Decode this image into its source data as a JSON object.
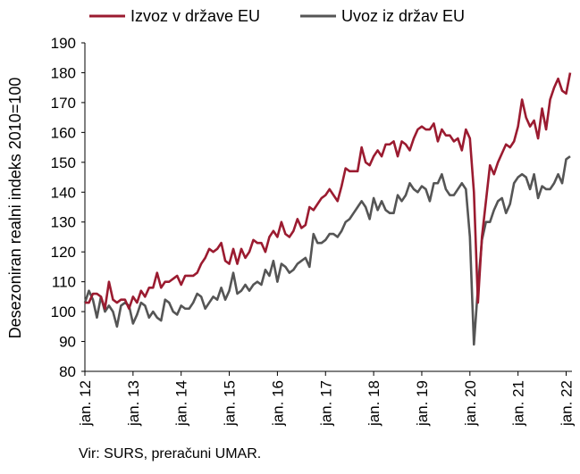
{
  "chart_data": {
    "type": "line",
    "ylabel": "Desezoniran realni indeks 2010=100",
    "ylim": [
      80,
      190
    ],
    "yticks": [
      80,
      90,
      100,
      110,
      120,
      130,
      140,
      150,
      160,
      170,
      180,
      190
    ],
    "xticks": [
      "jan. 12",
      "jan. 13",
      "jan. 14",
      "jan. 15",
      "jan. 16",
      "jan. 17",
      "jan. 18",
      "jan. 19",
      "jan. 20",
      "jan. 21",
      "jan. 22"
    ],
    "x_start": "jan. 12",
    "x_end": "apr. 22",
    "grid": false,
    "legend_position": "top",
    "series": [
      {
        "name": "Izvoz v države EU",
        "color": "#9b1b30",
        "values": [
          103,
          103,
          106,
          106,
          105,
          101,
          110,
          104,
          103,
          104,
          104,
          101,
          105,
          103,
          107,
          105,
          108,
          108,
          113,
          108,
          110,
          110,
          111,
          112,
          109,
          112,
          112,
          112,
          113,
          116,
          118,
          121,
          120,
          121,
          123,
          117,
          116,
          121,
          116,
          121,
          118,
          120,
          124,
          123,
          123,
          120,
          125,
          127,
          125,
          130,
          126,
          125,
          127,
          131,
          128,
          129,
          135,
          134,
          136,
          138,
          139,
          141,
          139,
          137,
          142,
          148,
          147,
          147,
          147,
          155,
          150,
          149,
          152,
          154,
          152,
          156,
          156,
          157,
          152,
          157,
          156,
          154,
          158,
          161,
          162,
          161,
          161,
          163,
          157,
          161,
          159,
          159,
          157,
          158,
          154,
          161,
          158,
          140,
          103,
          125,
          137,
          149,
          146,
          150,
          153,
          156,
          155,
          157,
          162,
          171,
          165,
          162,
          164,
          158,
          168,
          161,
          171,
          175,
          178,
          174,
          173,
          180
        ]
      },
      {
        "name": "Uvoz iz držav EU",
        "color": "#555555",
        "values": [
          103,
          107,
          104,
          98,
          105,
          100,
          102,
          100,
          95,
          102,
          103,
          102,
          96,
          99,
          103,
          102,
          98,
          100,
          98,
          97,
          104,
          103,
          100,
          99,
          102,
          101,
          101,
          103,
          106,
          105,
          101,
          103,
          105,
          104,
          108,
          104,
          107,
          113,
          106,
          107,
          109,
          107,
          109,
          110,
          109,
          114,
          112,
          117,
          110,
          116,
          115,
          113,
          114,
          116,
          117,
          118,
          115,
          126,
          123,
          123,
          124,
          126,
          126,
          125,
          127,
          130,
          131,
          133,
          135,
          137,
          135,
          131,
          138,
          134,
          137,
          134,
          133,
          133,
          139,
          137,
          139,
          143,
          141,
          140,
          142,
          141,
          137,
          143,
          143,
          146,
          141,
          139,
          139,
          141,
          143,
          141,
          125,
          89,
          108,
          124,
          130,
          130,
          134,
          137,
          138,
          133,
          136,
          143,
          145,
          146,
          145,
          141,
          146,
          138,
          142,
          141,
          141,
          143,
          146,
          143,
          151,
          152
        ]
      }
    ],
    "source": "Vir: SURS, preračuni UMAR."
  }
}
